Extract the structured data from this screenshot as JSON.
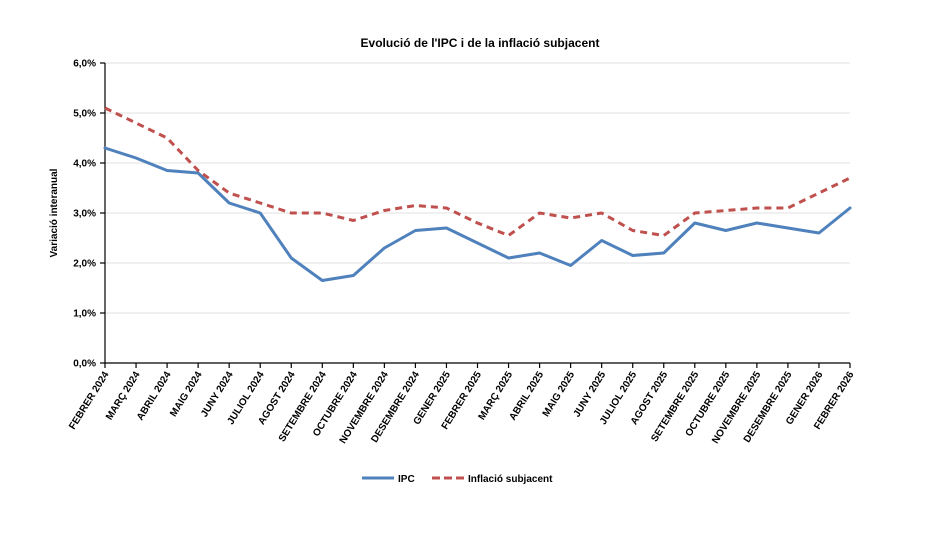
{
  "chart": {
    "title": "Evolució de l'IPC i de la inflació subjacent",
    "y_axis_title": "Variació interanual"
  },
  "chart_data": {
    "type": "line",
    "title": "Evolució de l'IPC i de la inflació subjacent",
    "xlabel": "",
    "ylabel": "Variació interanual",
    "ylim": [
      0,
      6
    ],
    "ytick_step": 1,
    "ytick_labels": [
      "0,0%",
      "1,0%",
      "2,0%",
      "3,0%",
      "4,0%",
      "5,0%",
      "6,0%"
    ],
    "grid": true,
    "legend_position": "bottom",
    "categories": [
      "FEBRER 2024",
      "MARÇ 2024",
      "ABRIL 2024",
      "MAIG 2024",
      "JUNY 2024",
      "JULIOL 2024",
      "AGOST 2024",
      "SETEMBRE 2024",
      "OCTUBRE 2024",
      "NOVEMBRE 2024",
      "DESEMBRE 2024",
      "GENER 2025",
      "FEBRER 2025",
      "MARÇ 2025",
      "ABRIL 2025",
      "MAIG 2025",
      "JUNY 2025",
      "JULIOL 2025",
      "AGOST 2025",
      "SETEMBRE 2025",
      "OCTUBRE 2025",
      "NOVEMBRE 2025",
      "DESEMBRE 2025",
      "GENER 2026",
      "FEBRER 2026"
    ],
    "series": [
      {
        "name": "IPC",
        "color": "#4F81BD",
        "style": "solid",
        "values": [
          4.3,
          4.1,
          3.85,
          3.8,
          3.2,
          3.0,
          2.1,
          1.65,
          1.75,
          2.3,
          2.65,
          2.7,
          2.4,
          2.1,
          2.2,
          1.95,
          2.45,
          2.15,
          2.2,
          2.8,
          2.65,
          2.8,
          2.7,
          2.6,
          3.1
        ]
      },
      {
        "name": "Inflació subjacent",
        "color": "#C0504D",
        "style": "dashed",
        "values": [
          5.1,
          4.8,
          4.5,
          3.85,
          3.4,
          3.2,
          3.0,
          3.0,
          2.85,
          3.05,
          3.15,
          3.1,
          2.8,
          2.55,
          3.0,
          2.9,
          3.0,
          2.65,
          2.55,
          3.0,
          3.05,
          3.1,
          3.1,
          3.4,
          3.7
        ]
      }
    ],
    "colors": {
      "grid": "#e2e2e2",
      "axis": "#000000",
      "background": "#ffffff"
    }
  }
}
